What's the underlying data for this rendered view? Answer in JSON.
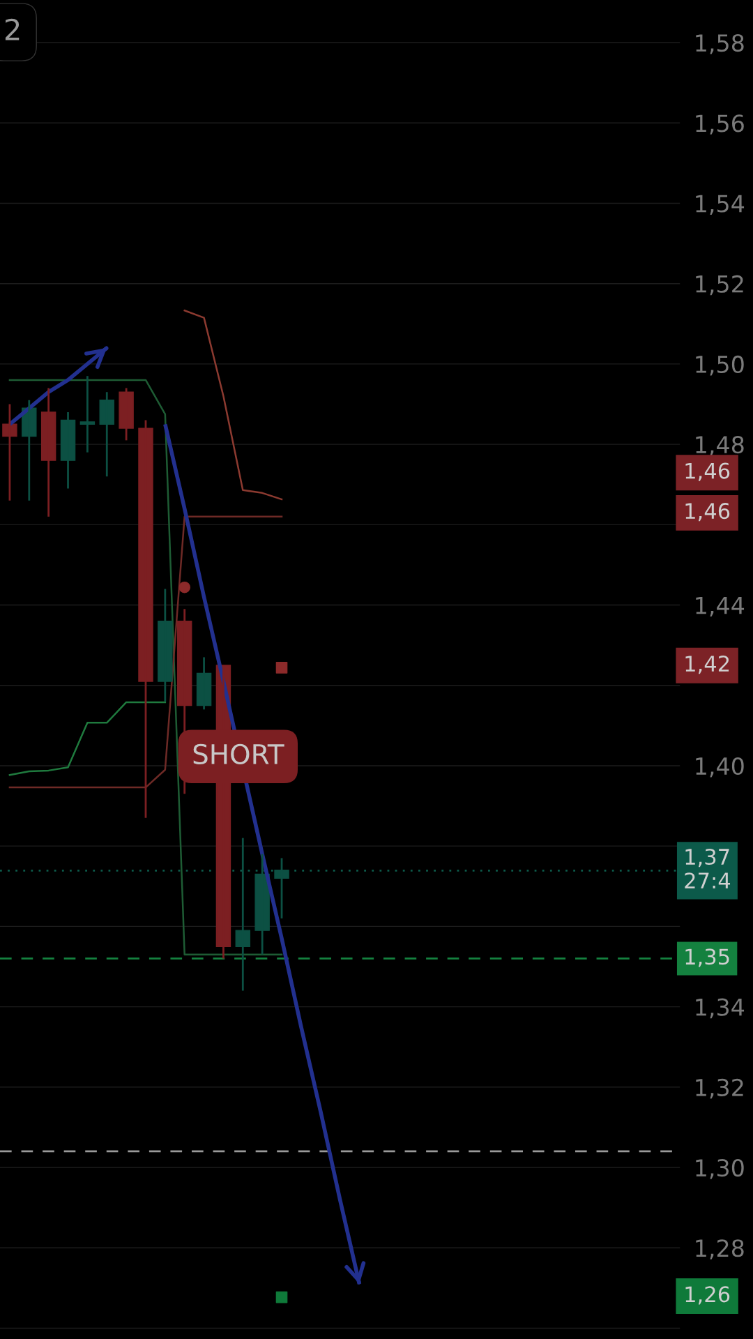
{
  "chart_data": {
    "type": "candlestick",
    "categories": [
      null,
      null,
      null,
      null,
      null,
      null,
      null,
      null,
      null,
      null,
      null,
      null,
      null,
      null,
      null,
      null,
      null,
      null,
      null,
      null,
      null,
      null,
      null,
      null,
      null,
      null,
      null,
      null,
      null,
      null,
      null,
      null,
      null,
      null,
      null
    ],
    "ohlc": [
      [
        1.485,
        1.49,
        1.466,
        1.482
      ],
      [
        1.482,
        1.491,
        1.466,
        1.489
      ],
      [
        1.488,
        1.494,
        1.462,
        1.476
      ],
      [
        1.476,
        1.488,
        1.469,
        1.486
      ],
      [
        1.485,
        1.497,
        1.478,
        1.4852
      ],
      [
        1.485,
        1.493,
        1.472,
        1.491
      ],
      [
        1.493,
        1.494,
        1.481,
        1.484
      ],
      [
        1.484,
        1.486,
        1.387,
        1.421
      ],
      [
        1.421,
        1.444,
        1.416,
        1.436
      ],
      [
        1.436,
        1.439,
        1.393,
        1.415
      ],
      [
        1.415,
        1.427,
        1.414,
        1.423
      ],
      [
        1.425,
        1.425,
        1.352,
        1.355
      ],
      [
        1.355,
        1.382,
        1.344,
        1.359
      ],
      [
        1.359,
        1.378,
        1.353,
        1.373
      ],
      [
        1.372,
        1.377,
        1.362,
        1.374
      ],
      null,
      null,
      null,
      null,
      null,
      null,
      null,
      null,
      null,
      null,
      null,
      null,
      null,
      null,
      null,
      null,
      null,
      null,
      null,
      null
    ],
    "colors": [
      "#7c1f22",
      "#0c5043",
      "#7c1f22",
      "#0c5043",
      "#0c5043",
      "#0c5043",
      "#7c1f22",
      "#7c1f22",
      "#0c5043",
      "#7c1f22",
      "#0c5043",
      "#7c1f22",
      "#0c5043",
      "#0c5043",
      "#0c5043",
      null,
      null,
      null,
      null,
      null,
      null,
      null,
      null,
      null,
      null,
      null,
      null,
      null,
      null,
      null,
      null,
      null,
      null,
      null,
      null
    ],
    "series": [
      {
        "type": "line",
        "color": "#1e5c34",
        "values": [
          1.496,
          1.496,
          1.496,
          1.496,
          1.496,
          1.496,
          1.496,
          1.496,
          1.4875,
          1.353,
          1.353,
          1.353,
          1.353,
          1.353,
          1.353,
          null,
          null,
          null,
          null,
          null,
          null,
          null,
          null,
          null,
          null,
          null,
          null,
          null,
          null,
          null,
          null,
          null,
          null,
          null,
          null
        ]
      },
      {
        "type": "line",
        "color": "#6e2a26",
        "values": [
          1.3946,
          1.3946,
          1.3946,
          1.3946,
          1.3946,
          1.3946,
          1.3946,
          1.3946,
          1.399,
          1.462,
          1.462,
          1.462,
          1.462,
          1.462,
          1.462,
          null,
          null,
          null,
          null,
          null,
          null,
          null,
          null,
          null,
          null,
          null,
          null,
          null,
          null,
          null,
          null,
          null,
          null,
          null,
          null
        ]
      },
      {
        "type": "line",
        "color": "#8c3a30",
        "values": [
          null,
          null,
          null,
          null,
          null,
          null,
          null,
          null,
          null,
          1.5133,
          1.5115,
          1.492,
          1.4686,
          1.4679,
          1.4663,
          null,
          null,
          null,
          null,
          null,
          null,
          null,
          null,
          null,
          null,
          null,
          null,
          null,
          null,
          null,
          null,
          null,
          null,
          null,
          null
        ]
      },
      {
        "type": "line",
        "color": "#1f7a3e",
        "values": [
          1.3977,
          1.3986,
          1.3988,
          1.3996,
          1.4107,
          1.4107,
          1.4158,
          1.4158,
          1.4158,
          null,
          null,
          null,
          null,
          null,
          null,
          null,
          null,
          null,
          null,
          null,
          null,
          null,
          null,
          null,
          null,
          null,
          null,
          null,
          null,
          null,
          null,
          null,
          null,
          null,
          null
        ]
      },
      {
        "type": "line",
        "color": "#22308f",
        "line_style": "solid",
        "values": [
          1.485,
          1.489,
          1.493,
          1.496,
          1.5,
          1.504,
          null,
          null,
          null,
          null,
          null,
          null,
          null,
          null,
          null,
          null,
          null,
          null,
          null,
          null,
          null,
          null,
          null,
          null,
          null,
          null,
          null,
          null,
          null,
          null,
          null,
          null,
          null,
          null,
          null
        ]
      },
      {
        "type": "line",
        "color": "#22308f",
        "line_style": "solid",
        "values": [
          null,
          null,
          null,
          null,
          null,
          null,
          null,
          null,
          1.485,
          1.464,
          1.442,
          1.421,
          null,
          1.378,
          1.357,
          1.335,
          1.314,
          1.292,
          1.271,
          null,
          null,
          null,
          null,
          null,
          null,
          null,
          null,
          null,
          null,
          null,
          null,
          null,
          null,
          null,
          null
        ]
      },
      {
        "type": "scatter",
        "color": "#8c2a2a",
        "marker": "circle",
        "values": [
          null,
          null,
          null,
          null,
          null,
          null,
          null,
          null,
          null,
          1.4444,
          null,
          null,
          null,
          null,
          null,
          null,
          null,
          null,
          null,
          null,
          null,
          null,
          null,
          null,
          null,
          null,
          null,
          null,
          null,
          null,
          null,
          null,
          null,
          null,
          null
        ]
      },
      {
        "type": "scatter",
        "color": "#8c2a2a",
        "marker": "square",
        "values": [
          null,
          null,
          null,
          null,
          null,
          null,
          null,
          null,
          null,
          null,
          null,
          null,
          null,
          null,
          1.4244,
          null,
          null,
          null,
          null,
          null,
          null,
          null,
          null,
          null,
          null,
          null,
          null,
          null,
          null,
          null,
          null,
          null,
          null,
          null,
          null
        ]
      },
      {
        "type": "scatter",
        "color": "#0f7a3a",
        "marker": "square",
        "values": [
          null,
          null,
          null,
          null,
          null,
          null,
          null,
          null,
          null,
          null,
          null,
          null,
          null,
          null,
          1.2677,
          null,
          null,
          null,
          null,
          null,
          null,
          null,
          null,
          null,
          null,
          null,
          null,
          null,
          null,
          null,
          null,
          null,
          null,
          null,
          null
        ]
      }
    ],
    "ylim": [
      1.2573,
      1.5906
    ],
    "yticks": [
      {
        "value": 1.26,
        "label": null
      },
      {
        "value": 1.28,
        "label": "1,28"
      },
      {
        "value": 1.3,
        "label": "1,30"
      },
      {
        "value": 1.32,
        "label": "1,32"
      },
      {
        "value": 1.34,
        "label": "1,34"
      },
      {
        "value": 1.36,
        "label": null
      },
      {
        "value": 1.38,
        "label": null
      },
      {
        "value": 1.4,
        "label": "1,40"
      },
      {
        "value": 1.42,
        "label": null
      },
      {
        "value": 1.44,
        "label": "1,44"
      },
      {
        "value": 1.46,
        "label": null
      },
      {
        "value": 1.48,
        "label": "1,48"
      },
      {
        "value": 1.5,
        "label": "1,50"
      },
      {
        "value": 1.52,
        "label": "1,52"
      },
      {
        "value": 1.54,
        "label": "1,54"
      },
      {
        "value": 1.56,
        "label": "1,56"
      },
      {
        "value": 1.58,
        "label": "1,58"
      }
    ],
    "grid": "y",
    "ref_lines": [
      {
        "axis": "y",
        "value": 1.3739,
        "label": "1,37\n27:4",
        "color": "#0c5a4a",
        "line_style": "dotted"
      },
      {
        "axis": "y",
        "value": 1.352,
        "label": "1,35",
        "color": "#14813f",
        "line_style": "dashed"
      },
      {
        "axis": "y",
        "value": 1.304,
        "label": null,
        "color": "#9a9a9a",
        "line_style": "dashed"
      }
    ],
    "annotations": [
      "2",
      "SHORT",
      "1,46",
      "1,46",
      "1,42",
      "1,26"
    ]
  }
}
